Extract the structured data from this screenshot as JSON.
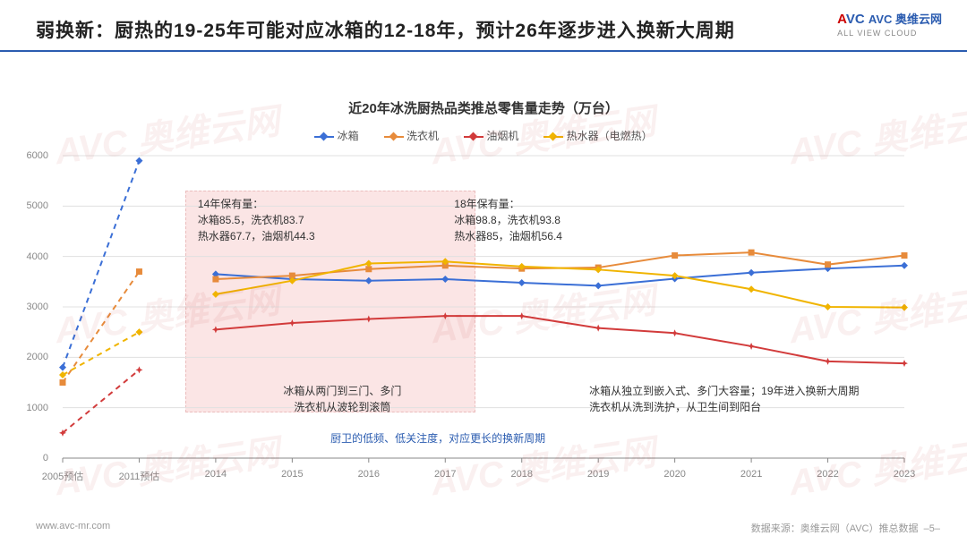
{
  "title": "弱换新：厨热的19-25年可能对应冰箱的12-18年，预计26年逐步进入换新大周期",
  "logo": {
    "line1": "AVC 奥维云网",
    "line2": "ALL VIEW CLOUD"
  },
  "chart": {
    "type": "line",
    "title": "近20年冰洗厨热品类推总零售量走势（万台）",
    "ylim": [
      0,
      6000
    ],
    "ytick_step": 1000,
    "categories": [
      "2005预估",
      "2011预估",
      "2014",
      "2015",
      "2016",
      "2017",
      "2018",
      "2019",
      "2020",
      "2021",
      "2022",
      "2023"
    ],
    "grid_color": "#e0e0e0",
    "axis_color": "#888888",
    "background_color": "#ffffff",
    "highlight": {
      "x_from": 2,
      "x_to": 5,
      "color": "rgba(240,150,150,0.25)"
    },
    "dash_until_index": 2,
    "series": [
      {
        "name": "冰箱",
        "color": "#3b6fd6",
        "marker": "diamond",
        "values": [
          1800,
          5900,
          3650,
          3550,
          3520,
          3550,
          3480,
          3420,
          3560,
          3680,
          3760,
          3820
        ]
      },
      {
        "name": "洗衣机",
        "color": "#e78b3b",
        "marker": "square",
        "values": [
          1500,
          3700,
          3550,
          3620,
          3750,
          3820,
          3760,
          3780,
          4020,
          4080,
          3840,
          4020
        ]
      },
      {
        "name": "油烟机",
        "color": "#d23b3b",
        "marker": "star",
        "values": [
          500,
          1750,
          2550,
          2680,
          2760,
          2820,
          2820,
          2580,
          2480,
          2220,
          1920,
          1880
        ]
      },
      {
        "name": "热水器（电燃热）",
        "color": "#f0b400",
        "marker": "diamond",
        "values": [
          1650,
          2500,
          3250,
          3520,
          3860,
          3900,
          3800,
          3740,
          3620,
          3350,
          3000,
          2990
        ]
      }
    ],
    "annotations": {
      "box14": {
        "l1": "14年保有量：",
        "l2": "冰箱85.5，洗衣机83.7",
        "l3": "热水器67.7，油烟机44.3"
      },
      "box18": {
        "l1": "18年保有量：",
        "l2": "冰箱98.8，洗衣机93.8",
        "l3": "热水器85，油烟机56.4"
      },
      "mid_left": {
        "l1": "冰箱从两门到三门、多门",
        "l2": "洗衣机从波轮到滚筒"
      },
      "blue_line": "厨卫的低频、低关注度，对应更长的换新周期",
      "right": {
        "l1": "冰箱从独立到嵌入式、多门大容量；19年进入换新大周期",
        "l2": "洗衣机从洗到洗护，从卫生间到阳台"
      }
    }
  },
  "footer": {
    "left": "www.avc-mr.com",
    "right": "数据来源：奥维云网（AVC）推总数据",
    "page": "–5–"
  },
  "watermark": "AVC 奥维云网"
}
